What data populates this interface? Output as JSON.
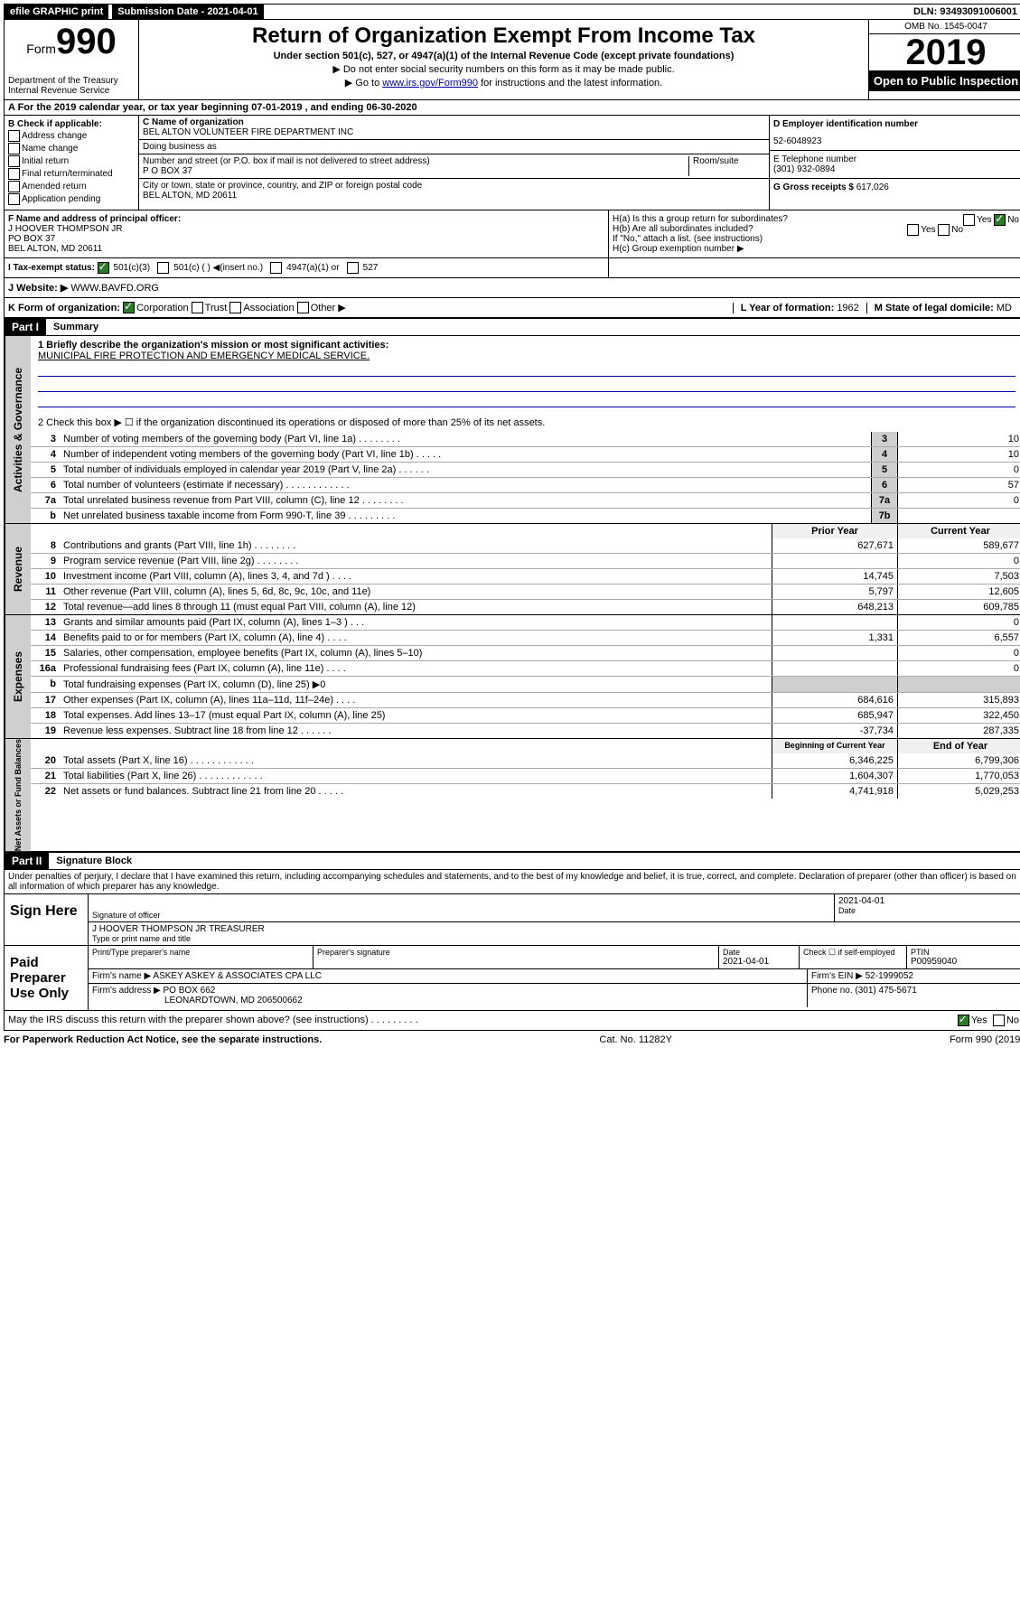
{
  "colors": {
    "black": "#000000",
    "white": "#ffffff",
    "link": "#0000aa",
    "grey_tab": "#cfcfcf",
    "check_green": "#2a7a2a"
  },
  "topbar": {
    "efile": "efile GRAPHIC print",
    "sub_label": "Submission Date - 2021-04-01",
    "dln": "DLN: 93493091006001"
  },
  "header": {
    "form_word": "Form",
    "form_no": "990",
    "dept": "Department of the Treasury\nInternal Revenue Service",
    "title": "Return of Organization Exempt From Income Tax",
    "sub1": "Under section 501(c), 527, or 4947(a)(1) of the Internal Revenue Code (except private foundations)",
    "sub2": "▶ Do not enter social security numbers on this form as it may be made public.",
    "sub3_pre": "▶ Go to ",
    "sub3_link": "www.irs.gov/Form990",
    "sub3_post": " for instructions and the latest information.",
    "omb": "OMB No. 1545-0047",
    "year": "2019",
    "open": "Open to Public Inspection"
  },
  "row_a": "A For the 2019 calendar year, or tax year beginning 07-01-2019   , and ending 06-30-2020",
  "col_b": {
    "title": "B Check if applicable:",
    "items": [
      "Address change",
      "Name change",
      "Initial return",
      "Final return/terminated",
      "Amended return",
      "Application pending"
    ]
  },
  "col_c": {
    "name_lbl": "C Name of organization",
    "name": "BEL ALTON VOLUNTEER FIRE DEPARTMENT INC",
    "dba_lbl": "Doing business as",
    "addr_lbl": "Number and street (or P.O. box if mail is not delivered to street address)",
    "room_lbl": "Room/suite",
    "addr": "P O BOX 37",
    "city_lbl": "City or town, state or province, country, and ZIP or foreign postal code",
    "city": "BEL ALTON, MD  20611",
    "f_lbl": "F Name and address of principal officer:",
    "f_name": "J HOOVER THOMPSON JR",
    "f_addr1": "PO BOX 37",
    "f_addr2": "BEL ALTON, MD  20611"
  },
  "col_d": {
    "ein_lbl": "D Employer identification number",
    "ein": "52-6048923",
    "tel_lbl": "E Telephone number",
    "tel": "(301) 932-0894",
    "gross_lbl": "G Gross receipts $",
    "gross": "617,026"
  },
  "h": {
    "a": "H(a)  Is this a group return for subordinates?",
    "b": "H(b)  Are all subordinates included?",
    "b_note": "If \"No,\" attach a list. (see instructions)",
    "c": "H(c)  Group exemption number ▶",
    "yes": "Yes",
    "no": "No"
  },
  "i": {
    "lbl": "I  Tax-exempt status:",
    "opts": [
      "501(c)(3)",
      "501(c) (  ) ◀(insert no.)",
      "4947(a)(1) or",
      "527"
    ]
  },
  "j": {
    "lbl": "J  Website: ▶",
    "val": "WWW.BAVFD.ORG"
  },
  "k": {
    "lbl": "K Form of organization:",
    "opts": [
      "Corporation",
      "Trust",
      "Association",
      "Other ▶"
    ],
    "l_lbl": "L Year of formation:",
    "l_val": "1962",
    "m_lbl": "M State of legal domicile:",
    "m_val": "MD"
  },
  "part1": {
    "hdr": "Part I",
    "title": "Summary",
    "q1_lbl": "1  Briefly describe the organization's mission or most significant activities:",
    "q1_val": "MUNICIPAL FIRE PROTECTION AND EMERGENCY MEDICAL SERVICE.",
    "q2": "2   Check this box ▶ ☐  if the organization discontinued its operations or disposed of more than 25% of its net assets.",
    "lines_gov": [
      {
        "n": "3",
        "d": "Number of voting members of the governing body (Part VI, line 1a)   .    .    .    .    .    .    .    .",
        "b": "3",
        "v": "10"
      },
      {
        "n": "4",
        "d": "Number of independent voting members of the governing body (Part VI, line 1b)   .    .    .    .    .",
        "b": "4",
        "v": "10"
      },
      {
        "n": "5",
        "d": "Total number of individuals employed in calendar year 2019 (Part V, line 2a)   .    .    .    .    .    .",
        "b": "5",
        "v": "0"
      },
      {
        "n": "6",
        "d": "Total number of volunteers (estimate if necessary)   .    .    .    .    .    .    .    .    .    .    .    .",
        "b": "6",
        "v": "57"
      },
      {
        "n": "7a",
        "d": "Total unrelated business revenue from Part VIII, column (C), line 12   .    .    .    .    .    .    .    .",
        "b": "7a",
        "v": "0"
      },
      {
        "n": "b",
        "d": "Net unrelated business taxable income from Form 990-T, line 39   .    .    .    .    .    .    .    .    .",
        "b": "7b",
        "v": ""
      }
    ],
    "col_hdr_prior": "Prior Year",
    "col_hdr_curr": "Current Year",
    "lines_rev": [
      {
        "n": "8",
        "d": "Contributions and grants (Part VIII, line 1h)   .    .    .    .    .    .    .    .",
        "p": "627,671",
        "c": "589,677"
      },
      {
        "n": "9",
        "d": "Program service revenue (Part VIII, line 2g)   .    .    .    .    .    .    .    .",
        "p": "",
        "c": "0"
      },
      {
        "n": "10",
        "d": "Investment income (Part VIII, column (A), lines 3, 4, and 7d )   .    .    .    .",
        "p": "14,745",
        "c": "7,503"
      },
      {
        "n": "11",
        "d": "Other revenue (Part VIII, column (A), lines 5, 6d, 8c, 9c, 10c, and 11e)",
        "p": "5,797",
        "c": "12,605"
      },
      {
        "n": "12",
        "d": "Total revenue—add lines 8 through 11 (must equal Part VIII, column (A), line 12)",
        "p": "648,213",
        "c": "609,785"
      }
    ],
    "lines_exp": [
      {
        "n": "13",
        "d": "Grants and similar amounts paid (Part IX, column (A), lines 1–3 )   .    .    .",
        "p": "",
        "c": "0"
      },
      {
        "n": "14",
        "d": "Benefits paid to or for members (Part IX, column (A), line 4)   .    .    .    .",
        "p": "1,331",
        "c": "6,557"
      },
      {
        "n": "15",
        "d": "Salaries, other compensation, employee benefits (Part IX, column (A), lines 5–10)",
        "p": "",
        "c": "0"
      },
      {
        "n": "16a",
        "d": "Professional fundraising fees (Part IX, column (A), line 11e)   .    .    .    .",
        "p": "",
        "c": "0"
      },
      {
        "n": "b",
        "d": "Total fundraising expenses (Part IX, column (D), line 25) ▶0",
        "p": "",
        "c": "",
        "shade": true
      },
      {
        "n": "17",
        "d": "Other expenses (Part IX, column (A), lines 11a–11d, 11f–24e)   .    .    .    .",
        "p": "684,616",
        "c": "315,893"
      },
      {
        "n": "18",
        "d": "Total expenses. Add lines 13–17 (must equal Part IX, column (A), line 25)",
        "p": "685,947",
        "c": "322,450"
      },
      {
        "n": "19",
        "d": "Revenue less expenses. Subtract line 18 from line 12   .    .    .    .    .    .",
        "p": "-37,734",
        "c": "287,335"
      }
    ],
    "col_hdr_beg": "Beginning of Current Year",
    "col_hdr_end": "End of Year",
    "lines_net": [
      {
        "n": "20",
        "d": "Total assets (Part X, line 16)   .    .    .    .    .    .    .    .    .    .    .    .",
        "p": "6,346,225",
        "c": "6,799,306"
      },
      {
        "n": "21",
        "d": "Total liabilities (Part X, line 26)   .    .    .    .    .    .    .    .    .    .    .    .",
        "p": "1,604,307",
        "c": "1,770,053"
      },
      {
        "n": "22",
        "d": "Net assets or fund balances. Subtract line 21 from line 20   .    .    .    .    .",
        "p": "4,741,918",
        "c": "5,029,253"
      }
    ]
  },
  "tabs": {
    "gov": "Activities & Governance",
    "rev": "Revenue",
    "exp": "Expenses",
    "net": "Net Assets or Fund Balances"
  },
  "part2": {
    "hdr": "Part II",
    "title": "Signature Block",
    "penalty": "Under penalties of perjury, I declare that I have examined this return, including accompanying schedules and statements, and to the best of my knowledge and belief, it is true, correct, and complete. Declaration of preparer (other than officer) is based on all information of which preparer has any knowledge."
  },
  "sign": {
    "lbl": "Sign Here",
    "sig_of": "Signature of officer",
    "date": "2021-04-01",
    "date_lbl": "Date",
    "name": "J HOOVER THOMPSON JR  TREASURER",
    "name_lbl": "Type or print name and title"
  },
  "paid": {
    "lbl": "Paid Preparer Use Only",
    "h1": "Print/Type preparer's name",
    "h2": "Preparer's signature",
    "h3": "Date",
    "h3v": "2021-04-01",
    "h4": "Check ☐ if self-employed",
    "h5": "PTIN",
    "h5v": "P00959040",
    "firm_lbl": "Firm's name    ▶",
    "firm": "ASKEY ASKEY & ASSOCIATES CPA LLC",
    "ein_lbl": "Firm's EIN ▶",
    "ein": "52-1999052",
    "addr_lbl": "Firm's address ▶",
    "addr1": "PO BOX 662",
    "addr2": "LEONARDTOWN, MD  206500662",
    "phone_lbl": "Phone no.",
    "phone": "(301) 475-5671"
  },
  "discuss": "May the IRS discuss this return with the preparer shown above? (see instructions)   .    .    .    .    .    .    .    .    .",
  "footer": {
    "left": "For Paperwork Reduction Act Notice, see the separate instructions.",
    "mid": "Cat. No. 11282Y",
    "right": "Form 990 (2019)"
  }
}
